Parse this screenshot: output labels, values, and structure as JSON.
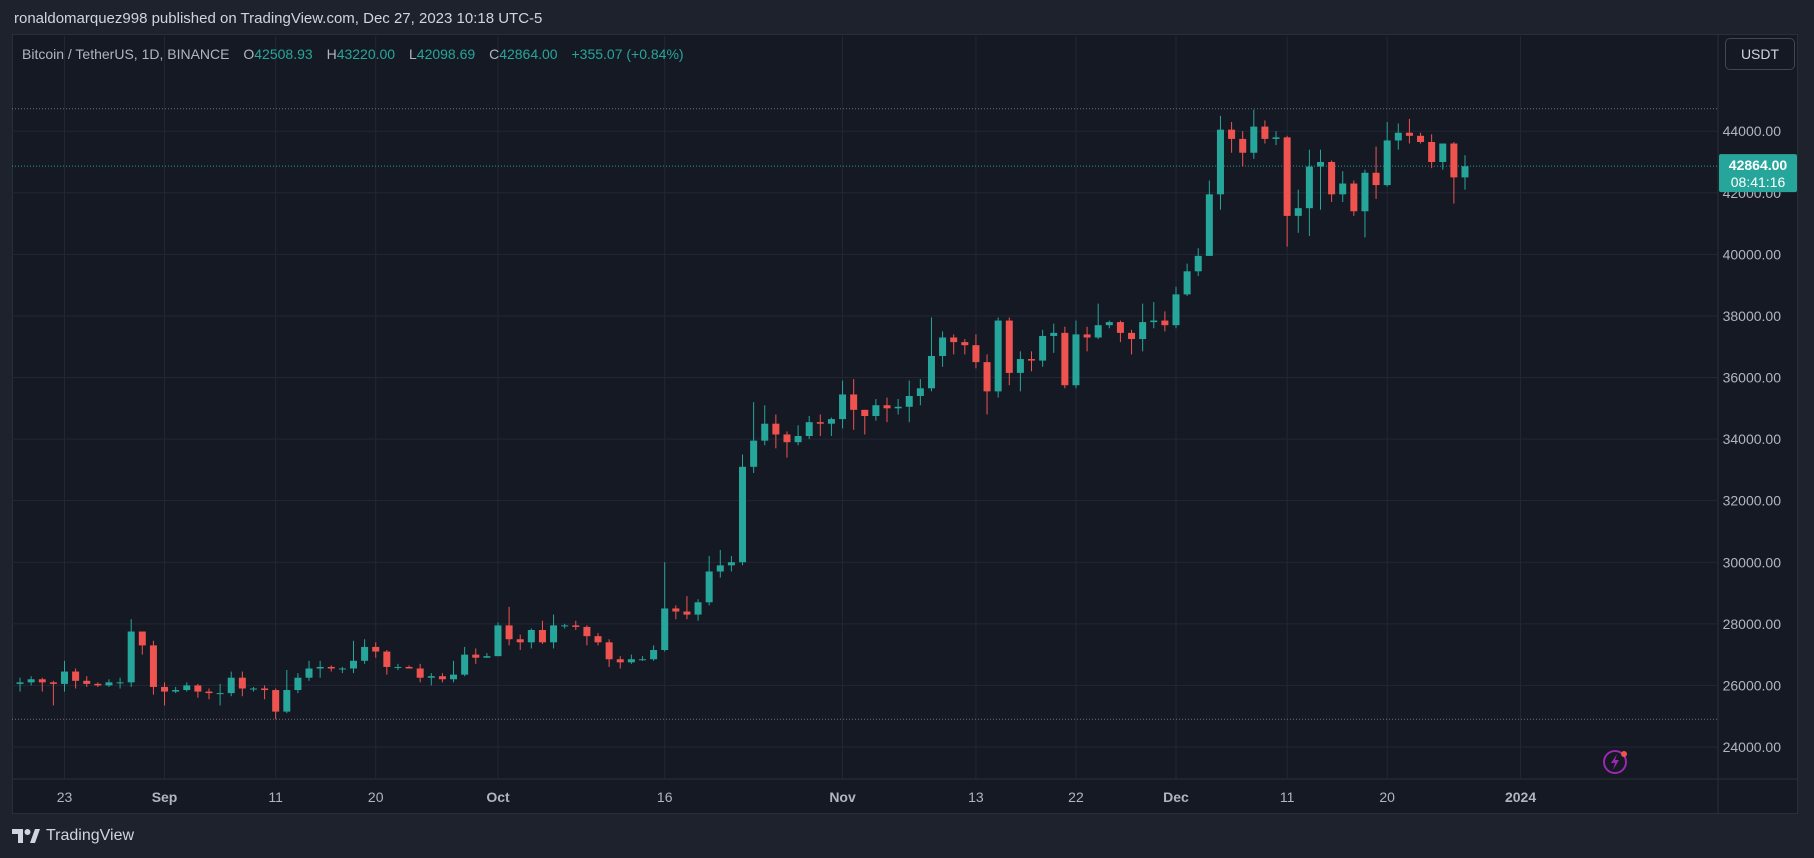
{
  "header": {
    "published_text": "ronaldomarquez998 published on TradingView.com, Dec 27, 2023 10:18 UTC-5"
  },
  "legend": {
    "symbol": "Bitcoin / TetherUS, 1D, BINANCE",
    "open_label": "O",
    "open": "42508.93",
    "high_label": "H",
    "high": "43220.00",
    "low_label": "L",
    "low": "42098.69",
    "close_label": "C",
    "close": "42864.00",
    "change": "+355.07 (+0.84%)"
  },
  "currency_button": "USDT",
  "price_badge": {
    "price": "42864.00",
    "countdown": "08:41:16"
  },
  "footer": {
    "brand": "TradingView"
  },
  "colors": {
    "background": "#151924",
    "up": "#26a69a",
    "down": "#ef5350",
    "grid": "#232733",
    "axis_text": "#b2b5be",
    "badge": "#26a69a",
    "alert_icon": "#9c27b0"
  },
  "chart_data": {
    "type": "candlestick",
    "title": "Bitcoin / TetherUS, 1D, BINANCE",
    "xlabel": "",
    "ylabel": "",
    "ylim": [
      23000,
      45000
    ],
    "y_ticks": [
      24000,
      26000,
      28000,
      30000,
      32000,
      34000,
      36000,
      38000,
      40000,
      42000,
      44000
    ],
    "y_tick_labels": [
      "24000.00",
      "26000.00",
      "28000.00",
      "30000.00",
      "32000.00",
      "34000.00",
      "36000.00",
      "38000.00",
      "40000.00",
      "42000.00",
      "44000.00"
    ],
    "x_tick_labels": [
      {
        "label": "23",
        "date": "2023-08-23"
      },
      {
        "label": "Sep",
        "date": "2023-09-01"
      },
      {
        "label": "11",
        "date": "2023-09-11"
      },
      {
        "label": "20",
        "date": "2023-09-20"
      },
      {
        "label": "Oct",
        "date": "2023-10-01"
      },
      {
        "label": "16",
        "date": "2023-10-16"
      },
      {
        "label": "Nov",
        "date": "2023-11-01"
      },
      {
        "label": "13",
        "date": "2023-11-13"
      },
      {
        "label": "22",
        "date": "2023-11-22"
      },
      {
        "label": "Dec",
        "date": "2023-12-01"
      },
      {
        "label": "11",
        "date": "2023-12-11"
      },
      {
        "label": "20",
        "date": "2023-12-20"
      },
      {
        "label": "2024",
        "date": "2024-01-01"
      }
    ],
    "horizontal_lines": [
      44730,
      42864,
      24900
    ],
    "grid": true,
    "candles": [
      {
        "date": "2023-08-19",
        "o": 26050,
        "h": 26250,
        "l": 25800,
        "c": 26100
      },
      {
        "date": "2023-08-20",
        "o": 26100,
        "h": 26300,
        "l": 26000,
        "c": 26200
      },
      {
        "date": "2023-08-21",
        "o": 26200,
        "h": 26250,
        "l": 25800,
        "c": 26100
      },
      {
        "date": "2023-08-22",
        "o": 26100,
        "h": 26150,
        "l": 25350,
        "c": 26050
      },
      {
        "date": "2023-08-23",
        "o": 26050,
        "h": 26800,
        "l": 25800,
        "c": 26450
      },
      {
        "date": "2023-08-24",
        "o": 26450,
        "h": 26550,
        "l": 25900,
        "c": 26150
      },
      {
        "date": "2023-08-25",
        "o": 26150,
        "h": 26300,
        "l": 25950,
        "c": 26050
      },
      {
        "date": "2023-08-26",
        "o": 26050,
        "h": 26100,
        "l": 25950,
        "c": 26000
      },
      {
        "date": "2023-08-27",
        "o": 26000,
        "h": 26200,
        "l": 25950,
        "c": 26100
      },
      {
        "date": "2023-08-28",
        "o": 26100,
        "h": 26250,
        "l": 25900,
        "c": 26100
      },
      {
        "date": "2023-08-29",
        "o": 26100,
        "h": 28150,
        "l": 25950,
        "c": 27750
      },
      {
        "date": "2023-08-30",
        "o": 27750,
        "h": 27750,
        "l": 27000,
        "c": 27300
      },
      {
        "date": "2023-08-31",
        "o": 27300,
        "h": 27450,
        "l": 25700,
        "c": 25950
      },
      {
        "date": "2023-09-01",
        "o": 25950,
        "h": 26100,
        "l": 25350,
        "c": 25800
      },
      {
        "date": "2023-09-02",
        "o": 25800,
        "h": 25950,
        "l": 25750,
        "c": 25850
      },
      {
        "date": "2023-09-03",
        "o": 25850,
        "h": 26100,
        "l": 25800,
        "c": 26000
      },
      {
        "date": "2023-09-04",
        "o": 26000,
        "h": 26050,
        "l": 25600,
        "c": 25800
      },
      {
        "date": "2023-09-05",
        "o": 25800,
        "h": 25900,
        "l": 25550,
        "c": 25750
      },
      {
        "date": "2023-09-06",
        "o": 25750,
        "h": 26050,
        "l": 25350,
        "c": 25750
      },
      {
        "date": "2023-09-07",
        "o": 25750,
        "h": 26450,
        "l": 25650,
        "c": 26250
      },
      {
        "date": "2023-09-08",
        "o": 26250,
        "h": 26450,
        "l": 25650,
        "c": 25900
      },
      {
        "date": "2023-09-09",
        "o": 25900,
        "h": 25950,
        "l": 25800,
        "c": 25900
      },
      {
        "date": "2023-09-10",
        "o": 25900,
        "h": 26000,
        "l": 25550,
        "c": 25850
      },
      {
        "date": "2023-09-11",
        "o": 25850,
        "h": 25900,
        "l": 24900,
        "c": 25150
      },
      {
        "date": "2023-09-12",
        "o": 25150,
        "h": 26500,
        "l": 25100,
        "c": 25850
      },
      {
        "date": "2023-09-13",
        "o": 25850,
        "h": 26400,
        "l": 25750,
        "c": 26250
      },
      {
        "date": "2023-09-14",
        "o": 26250,
        "h": 26800,
        "l": 26150,
        "c": 26550
      },
      {
        "date": "2023-09-15",
        "o": 26550,
        "h": 26800,
        "l": 26250,
        "c": 26600
      },
      {
        "date": "2023-09-16",
        "o": 26600,
        "h": 26650,
        "l": 26450,
        "c": 26550
      },
      {
        "date": "2023-09-17",
        "o": 26550,
        "h": 26600,
        "l": 26400,
        "c": 26550
      },
      {
        "date": "2023-09-18",
        "o": 26550,
        "h": 27450,
        "l": 26400,
        "c": 26800
      },
      {
        "date": "2023-09-19",
        "o": 26800,
        "h": 27500,
        "l": 26700,
        "c": 27250
      },
      {
        "date": "2023-09-20",
        "o": 27250,
        "h": 27400,
        "l": 26900,
        "c": 27100
      },
      {
        "date": "2023-09-21",
        "o": 27100,
        "h": 27150,
        "l": 26350,
        "c": 26600
      },
      {
        "date": "2023-09-22",
        "o": 26600,
        "h": 26700,
        "l": 26500,
        "c": 26600
      },
      {
        "date": "2023-09-23",
        "o": 26600,
        "h": 26650,
        "l": 26550,
        "c": 26550
      },
      {
        "date": "2023-09-24",
        "o": 26550,
        "h": 26700,
        "l": 26100,
        "c": 26250
      },
      {
        "date": "2023-09-25",
        "o": 26250,
        "h": 26400,
        "l": 26000,
        "c": 26300
      },
      {
        "date": "2023-09-26",
        "o": 26300,
        "h": 26400,
        "l": 26100,
        "c": 26200
      },
      {
        "date": "2023-09-27",
        "o": 26200,
        "h": 26800,
        "l": 26100,
        "c": 26350
      },
      {
        "date": "2023-09-28",
        "o": 26350,
        "h": 27250,
        "l": 26300,
        "c": 27000
      },
      {
        "date": "2023-09-29",
        "o": 27000,
        "h": 27200,
        "l": 26700,
        "c": 26900
      },
      {
        "date": "2023-09-30",
        "o": 26900,
        "h": 27050,
        "l": 26900,
        "c": 26950
      },
      {
        "date": "2023-10-01",
        "o": 26950,
        "h": 28050,
        "l": 26950,
        "c": 27950
      },
      {
        "date": "2023-10-02",
        "o": 27950,
        "h": 28550,
        "l": 27300,
        "c": 27500
      },
      {
        "date": "2023-10-03",
        "o": 27500,
        "h": 27650,
        "l": 27150,
        "c": 27400
      },
      {
        "date": "2023-10-04",
        "o": 27400,
        "h": 27850,
        "l": 27200,
        "c": 27800
      },
      {
        "date": "2023-10-05",
        "o": 27800,
        "h": 28100,
        "l": 27350,
        "c": 27400
      },
      {
        "date": "2023-10-06",
        "o": 27400,
        "h": 28300,
        "l": 27200,
        "c": 27950
      },
      {
        "date": "2023-10-07",
        "o": 27950,
        "h": 28000,
        "l": 27850,
        "c": 27950
      },
      {
        "date": "2023-10-08",
        "o": 27950,
        "h": 28100,
        "l": 27800,
        "c": 27900
      },
      {
        "date": "2023-10-09",
        "o": 27900,
        "h": 27950,
        "l": 27300,
        "c": 27600
      },
      {
        "date": "2023-10-10",
        "o": 27600,
        "h": 27700,
        "l": 27300,
        "c": 27400
      },
      {
        "date": "2023-10-11",
        "o": 27400,
        "h": 27500,
        "l": 26600,
        "c": 26850
      },
      {
        "date": "2023-10-12",
        "o": 26850,
        "h": 26950,
        "l": 26550,
        "c": 26750
      },
      {
        "date": "2023-10-13",
        "o": 26750,
        "h": 27000,
        "l": 26700,
        "c": 26850
      },
      {
        "date": "2023-10-14",
        "o": 26850,
        "h": 26950,
        "l": 26800,
        "c": 26850
      },
      {
        "date": "2023-10-15",
        "o": 26850,
        "h": 27300,
        "l": 26800,
        "c": 27150
      },
      {
        "date": "2023-10-16",
        "o": 27150,
        "h": 30000,
        "l": 27100,
        "c": 28500
      },
      {
        "date": "2023-10-17",
        "o": 28500,
        "h": 28600,
        "l": 28150,
        "c": 28400
      },
      {
        "date": "2023-10-18",
        "o": 28400,
        "h": 28900,
        "l": 28150,
        "c": 28300
      },
      {
        "date": "2023-10-19",
        "o": 28300,
        "h": 28800,
        "l": 28100,
        "c": 28700
      },
      {
        "date": "2023-10-20",
        "o": 28700,
        "h": 30200,
        "l": 28600,
        "c": 29700
      },
      {
        "date": "2023-10-21",
        "o": 29700,
        "h": 30400,
        "l": 29500,
        "c": 29900
      },
      {
        "date": "2023-10-22",
        "o": 29900,
        "h": 30200,
        "l": 29700,
        "c": 30000
      },
      {
        "date": "2023-10-23",
        "o": 30000,
        "h": 33500,
        "l": 29900,
        "c": 33100
      },
      {
        "date": "2023-10-24",
        "o": 33100,
        "h": 35200,
        "l": 32900,
        "c": 33950
      },
      {
        "date": "2023-10-25",
        "o": 33950,
        "h": 35100,
        "l": 33800,
        "c": 34500
      },
      {
        "date": "2023-10-26",
        "o": 34500,
        "h": 34800,
        "l": 33700,
        "c": 34150
      },
      {
        "date": "2023-10-27",
        "o": 34150,
        "h": 34250,
        "l": 33400,
        "c": 33900
      },
      {
        "date": "2023-10-28",
        "o": 33900,
        "h": 34450,
        "l": 33800,
        "c": 34100
      },
      {
        "date": "2023-10-29",
        "o": 34100,
        "h": 34750,
        "l": 34000,
        "c": 34550
      },
      {
        "date": "2023-10-30",
        "o": 34550,
        "h": 34800,
        "l": 34100,
        "c": 34500
      },
      {
        "date": "2023-10-31",
        "o": 34500,
        "h": 34700,
        "l": 34100,
        "c": 34650
      },
      {
        "date": "2023-11-01",
        "o": 34650,
        "h": 35900,
        "l": 34350,
        "c": 35450
      },
      {
        "date": "2023-11-02",
        "o": 35450,
        "h": 35950,
        "l": 34300,
        "c": 34950
      },
      {
        "date": "2023-11-03",
        "o": 34950,
        "h": 34950,
        "l": 34150,
        "c": 34750
      },
      {
        "date": "2023-11-04",
        "o": 34750,
        "h": 35300,
        "l": 34600,
        "c": 35100
      },
      {
        "date": "2023-11-05",
        "o": 35100,
        "h": 35350,
        "l": 34550,
        "c": 35000
      },
      {
        "date": "2023-11-06",
        "o": 35000,
        "h": 35300,
        "l": 34800,
        "c": 35050
      },
      {
        "date": "2023-11-07",
        "o": 35050,
        "h": 35900,
        "l": 34550,
        "c": 35400
      },
      {
        "date": "2023-11-08",
        "o": 35400,
        "h": 35950,
        "l": 35100,
        "c": 35650
      },
      {
        "date": "2023-11-09",
        "o": 35650,
        "h": 37950,
        "l": 35550,
        "c": 36700
      },
      {
        "date": "2023-11-10",
        "o": 36700,
        "h": 37500,
        "l": 36350,
        "c": 37300
      },
      {
        "date": "2023-11-11",
        "o": 37300,
        "h": 37400,
        "l": 36750,
        "c": 37150
      },
      {
        "date": "2023-11-12",
        "o": 37150,
        "h": 37250,
        "l": 36750,
        "c": 37050
      },
      {
        "date": "2023-11-13",
        "o": 37050,
        "h": 37400,
        "l": 36300,
        "c": 36500
      },
      {
        "date": "2023-11-14",
        "o": 36500,
        "h": 36750,
        "l": 34800,
        "c": 35550
      },
      {
        "date": "2023-11-15",
        "o": 35550,
        "h": 37950,
        "l": 35350,
        "c": 37850
      },
      {
        "date": "2023-11-16",
        "o": 37850,
        "h": 37950,
        "l": 35750,
        "c": 36150
      },
      {
        "date": "2023-11-17",
        "o": 36150,
        "h": 36850,
        "l": 35550,
        "c": 36600
      },
      {
        "date": "2023-11-18",
        "o": 36600,
        "h": 36850,
        "l": 36200,
        "c": 36550
      },
      {
        "date": "2023-11-19",
        "o": 36550,
        "h": 37550,
        "l": 36350,
        "c": 37350
      },
      {
        "date": "2023-11-20",
        "o": 37350,
        "h": 37750,
        "l": 36800,
        "c": 37450
      },
      {
        "date": "2023-11-21",
        "o": 37450,
        "h": 37650,
        "l": 35650,
        "c": 35750
      },
      {
        "date": "2023-11-22",
        "o": 35750,
        "h": 37850,
        "l": 35650,
        "c": 37400
      },
      {
        "date": "2023-11-23",
        "o": 37400,
        "h": 37650,
        "l": 36850,
        "c": 37300
      },
      {
        "date": "2023-11-24",
        "o": 37300,
        "h": 38400,
        "l": 37250,
        "c": 37700
      },
      {
        "date": "2023-11-25",
        "o": 37700,
        "h": 37850,
        "l": 37600,
        "c": 37800
      },
      {
        "date": "2023-11-26",
        "o": 37800,
        "h": 37850,
        "l": 37150,
        "c": 37450
      },
      {
        "date": "2023-11-27",
        "o": 37450,
        "h": 37550,
        "l": 36750,
        "c": 37250
      },
      {
        "date": "2023-11-28",
        "o": 37250,
        "h": 38400,
        "l": 36850,
        "c": 37800
      },
      {
        "date": "2023-11-29",
        "o": 37800,
        "h": 38450,
        "l": 37600,
        "c": 37850
      },
      {
        "date": "2023-11-30",
        "o": 37850,
        "h": 38150,
        "l": 37500,
        "c": 37700
      },
      {
        "date": "2023-12-01",
        "o": 37700,
        "h": 38950,
        "l": 37600,
        "c": 38700
      },
      {
        "date": "2023-12-02",
        "o": 38700,
        "h": 39700,
        "l": 38650,
        "c": 39450
      },
      {
        "date": "2023-12-03",
        "o": 39450,
        "h": 40200,
        "l": 39300,
        "c": 39950
      },
      {
        "date": "2023-12-04",
        "o": 39950,
        "h": 42400,
        "l": 39950,
        "c": 41950
      },
      {
        "date": "2023-12-05",
        "o": 41950,
        "h": 44500,
        "l": 41450,
        "c": 44050
      },
      {
        "date": "2023-12-06",
        "o": 44050,
        "h": 44300,
        "l": 43300,
        "c": 43750
      },
      {
        "date": "2023-12-07",
        "o": 43750,
        "h": 44000,
        "l": 42850,
        "c": 43300
      },
      {
        "date": "2023-12-08",
        "o": 43300,
        "h": 44700,
        "l": 43100,
        "c": 44150
      },
      {
        "date": "2023-12-09",
        "o": 44150,
        "h": 44350,
        "l": 43600,
        "c": 43750
      },
      {
        "date": "2023-12-10",
        "o": 43750,
        "h": 44000,
        "l": 43550,
        "c": 43800
      },
      {
        "date": "2023-12-11",
        "o": 43800,
        "h": 43850,
        "l": 40250,
        "c": 41250
      },
      {
        "date": "2023-12-12",
        "o": 41250,
        "h": 42100,
        "l": 40700,
        "c": 41500
      },
      {
        "date": "2023-12-13",
        "o": 41500,
        "h": 43400,
        "l": 40600,
        "c": 42850
      },
      {
        "date": "2023-12-14",
        "o": 42850,
        "h": 43400,
        "l": 41450,
        "c": 43000
      },
      {
        "date": "2023-12-15",
        "o": 43000,
        "h": 43050,
        "l": 41700,
        "c": 41950
      },
      {
        "date": "2023-12-16",
        "o": 41950,
        "h": 42700,
        "l": 41700,
        "c": 42300
      },
      {
        "date": "2023-12-17",
        "o": 42300,
        "h": 42400,
        "l": 41250,
        "c": 41400
      },
      {
        "date": "2023-12-18",
        "o": 41400,
        "h": 42750,
        "l": 40550,
        "c": 42650
      },
      {
        "date": "2023-12-19",
        "o": 42650,
        "h": 43500,
        "l": 41800,
        "c": 42250
      },
      {
        "date": "2023-12-20",
        "o": 42250,
        "h": 44300,
        "l": 42200,
        "c": 43700
      },
      {
        "date": "2023-12-21",
        "o": 43700,
        "h": 44250,
        "l": 43400,
        "c": 43950
      },
      {
        "date": "2023-12-22",
        "o": 43950,
        "h": 44400,
        "l": 43600,
        "c": 43850
      },
      {
        "date": "2023-12-23",
        "o": 43850,
        "h": 43950,
        "l": 43600,
        "c": 43650
      },
      {
        "date": "2023-12-24",
        "o": 43650,
        "h": 43900,
        "l": 42800,
        "c": 43000
      },
      {
        "date": "2023-12-25",
        "o": 43000,
        "h": 43600,
        "l": 42750,
        "c": 43600
      },
      {
        "date": "2023-12-26",
        "o": 43600,
        "h": 43650,
        "l": 41650,
        "c": 42500
      },
      {
        "date": "2023-12-27",
        "o": 42500,
        "h": 43220,
        "l": 42100,
        "c": 42864
      }
    ]
  }
}
